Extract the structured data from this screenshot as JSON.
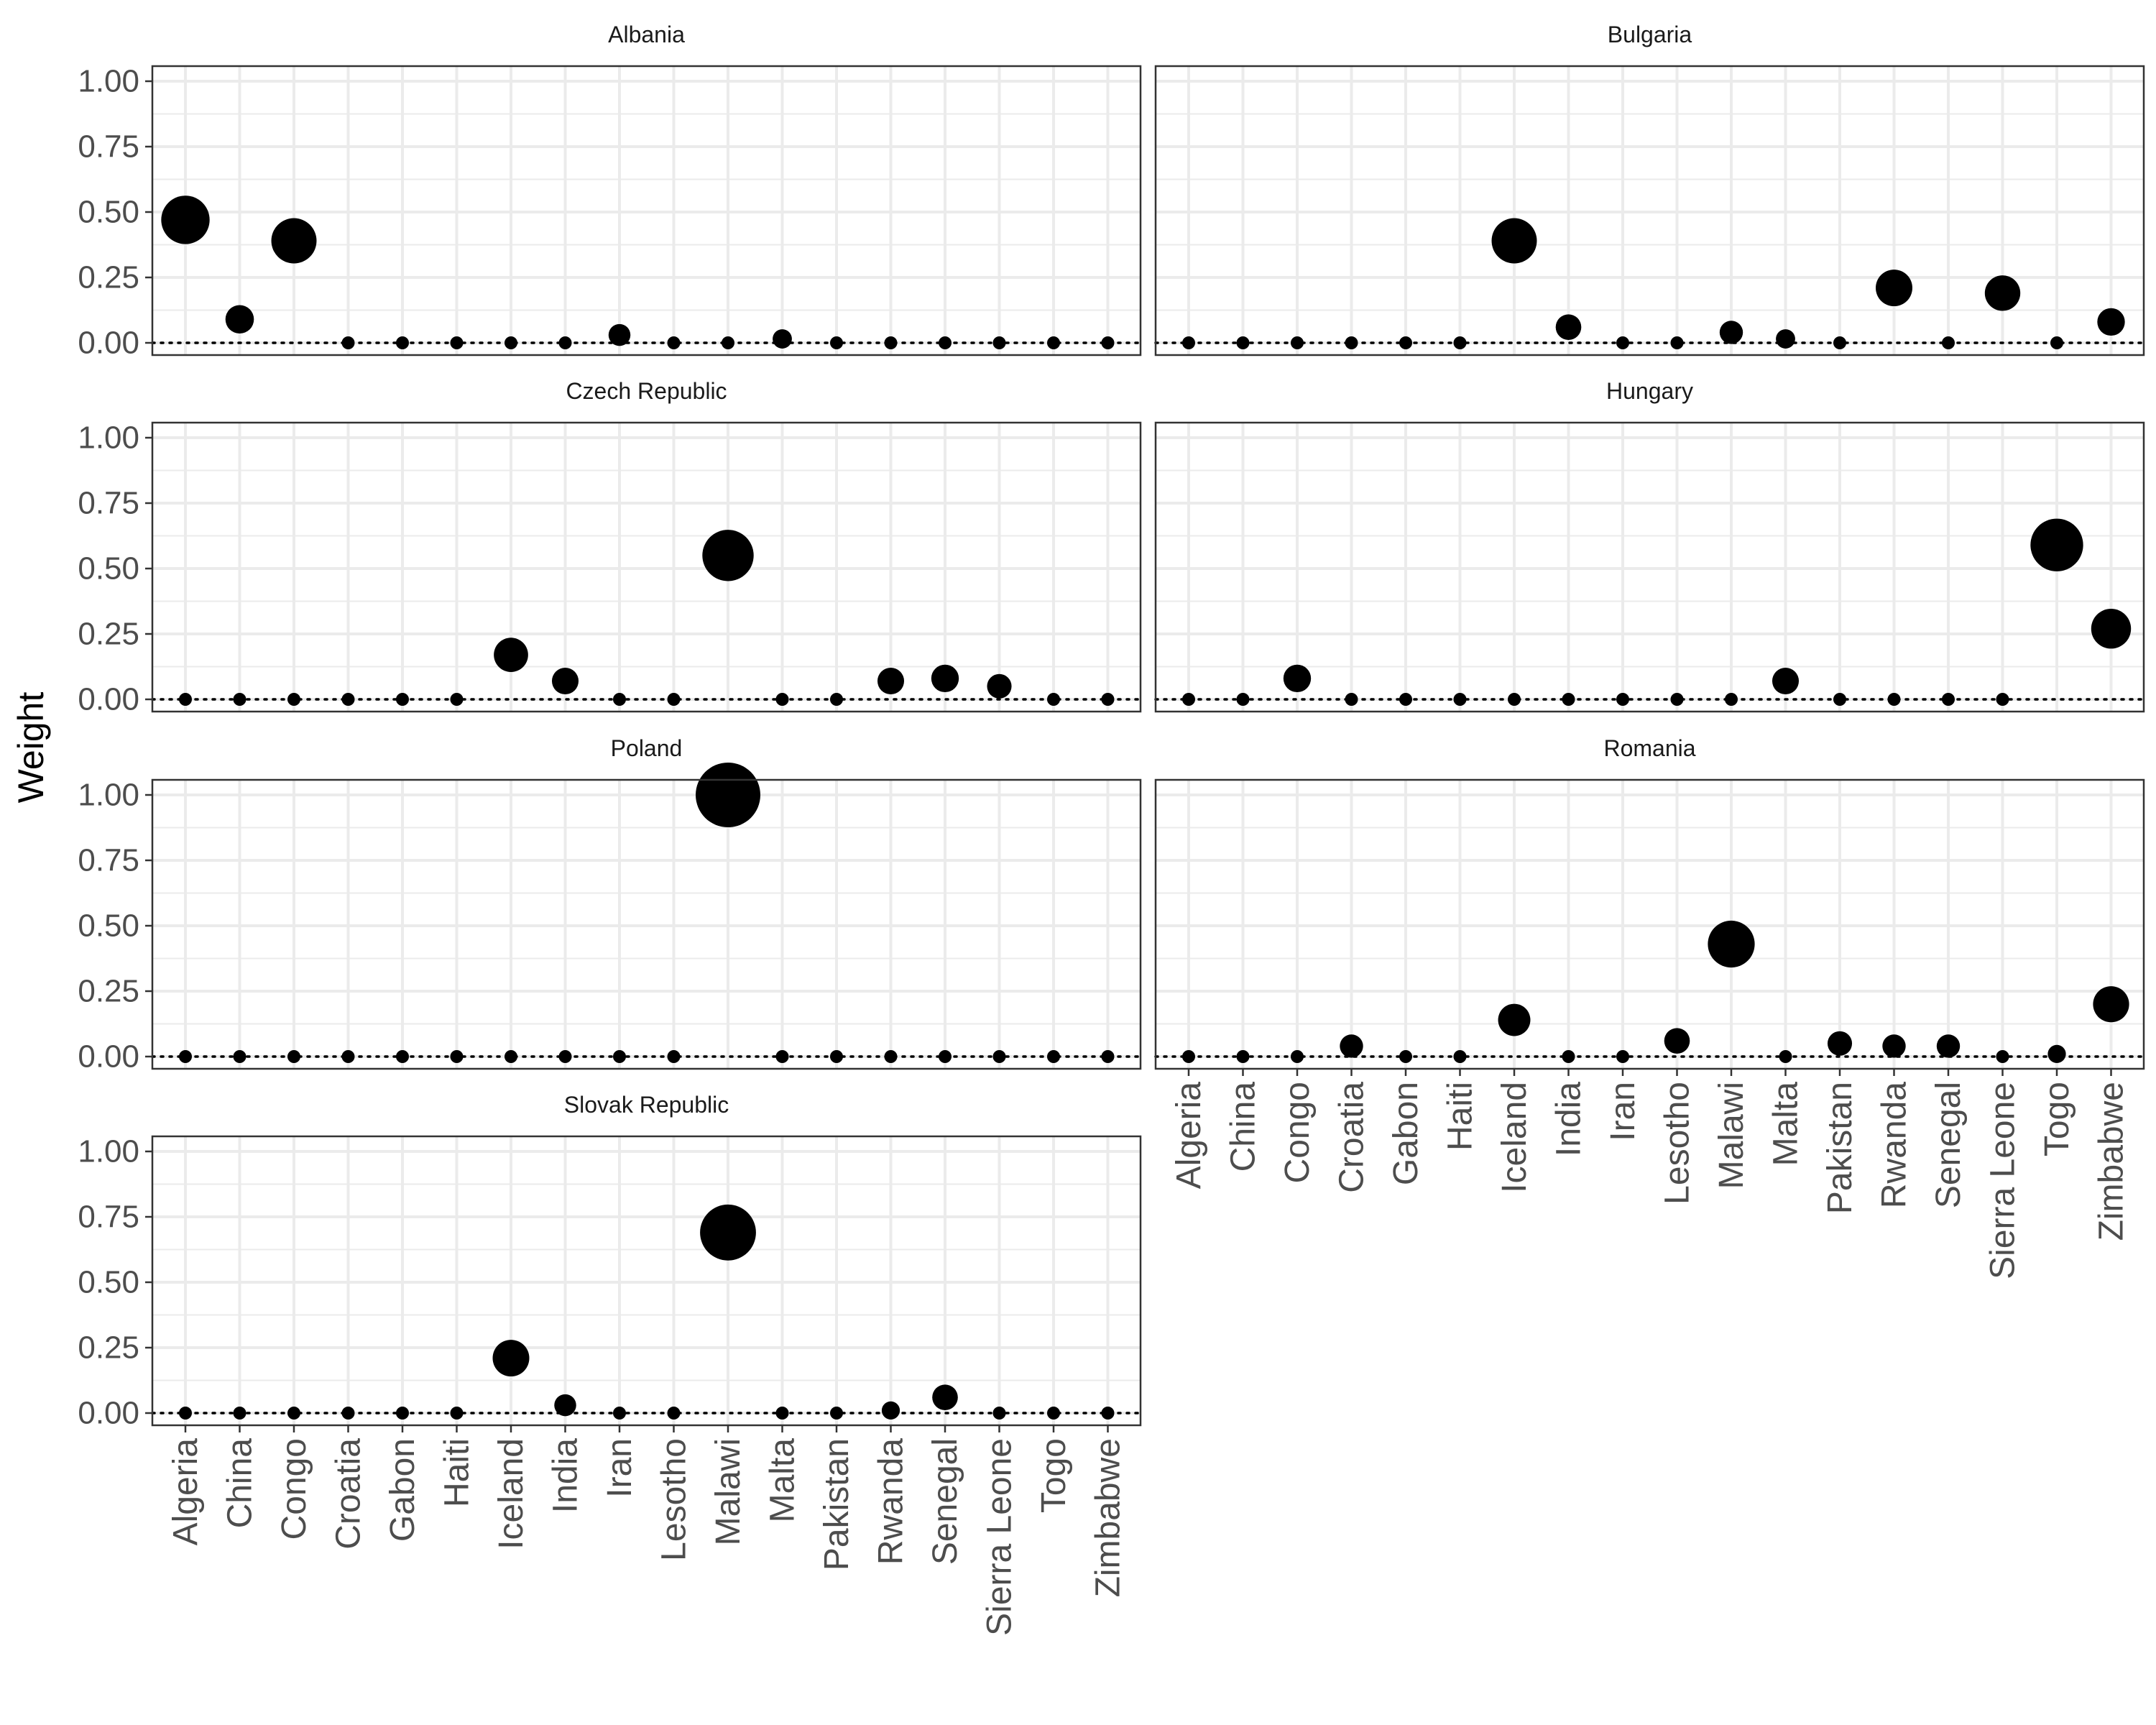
{
  "chart_data": {
    "type": "scatter",
    "facet_layout": "wrap-2-columns",
    "ylabel": "Weight",
    "xlabel": "",
    "ylim": [
      0,
      1
    ],
    "yticks": [
      "0.00",
      "0.25",
      "0.50",
      "0.75",
      "1.00"
    ],
    "ytick_values": [
      0,
      0.25,
      0.5,
      0.75,
      1
    ],
    "reference_line": {
      "y": 0,
      "style": "dotted"
    },
    "point_size": "proportional-to-weight",
    "grid": true,
    "categories": [
      "Algeria",
      "China",
      "Congo",
      "Croatia",
      "Gabon",
      "Haiti",
      "Iceland",
      "India",
      "Iran",
      "Lesotho",
      "Malawi",
      "Malta",
      "Pakistan",
      "Rwanda",
      "Senegal",
      "Sierra Leone",
      "Togo",
      "Zimbabwe"
    ],
    "colors": {
      "point": "#000000",
      "grid": "#ebebeb",
      "panel_border": "#333333"
    },
    "panels": [
      {
        "title": "Albania",
        "values": [
          0.47,
          0.09,
          0.39,
          0,
          0,
          0,
          0,
          0,
          0.03,
          0,
          0,
          0.015,
          0,
          0,
          0,
          0,
          0,
          0
        ]
      },
      {
        "title": "Bulgaria",
        "values": [
          0,
          0,
          0,
          0,
          0,
          0,
          0.39,
          0.06,
          0,
          0,
          0.04,
          0.015,
          0,
          0.21,
          0,
          0.19,
          0,
          0.08
        ]
      },
      {
        "title": "Czech Republic",
        "values": [
          0,
          0,
          0,
          0,
          0,
          0,
          0.17,
          0.07,
          0,
          0,
          0.55,
          0,
          0,
          0.07,
          0.08,
          0.05,
          0,
          0
        ]
      },
      {
        "title": "Hungary",
        "values": [
          0,
          0,
          0.08,
          0,
          0,
          0,
          0,
          0,
          0,
          0,
          0,
          0.07,
          0,
          0,
          0,
          0,
          0.59,
          0.27
        ]
      },
      {
        "title": "Poland",
        "values": [
          0,
          0,
          0,
          0,
          0,
          0,
          0,
          0,
          0,
          0,
          1.0,
          0,
          0,
          0,
          0,
          0,
          0,
          0
        ]
      },
      {
        "title": "Romania",
        "values": [
          0,
          0,
          0,
          0.04,
          0,
          0,
          0.14,
          0,
          0,
          0.06,
          0.43,
          0,
          0.05,
          0.04,
          0.04,
          0,
          0.01,
          0.2
        ]
      },
      {
        "title": "Slovak Republic",
        "values": [
          0,
          0,
          0,
          0,
          0,
          0,
          0.21,
          0.03,
          0,
          0,
          0.69,
          0,
          0,
          0.01,
          0.06,
          0,
          0,
          0
        ]
      }
    ]
  }
}
